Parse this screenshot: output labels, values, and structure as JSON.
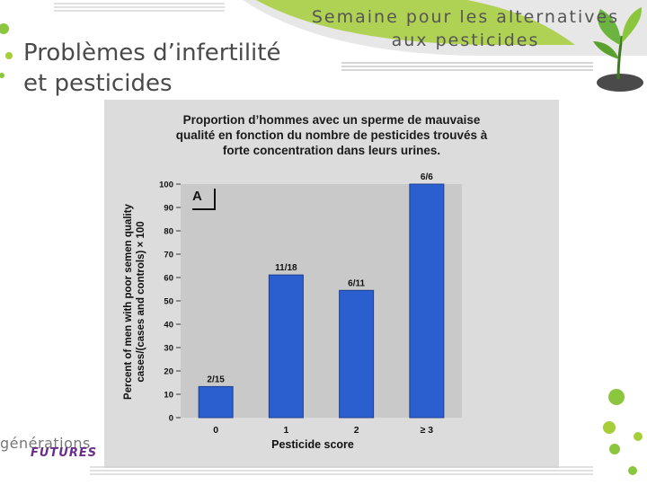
{
  "slide": {
    "title_line1": "Problèmes d’infertilité",
    "title_line2": "et pesticides",
    "banner_line1": "Semaine pour les alternatives",
    "banner_line2": "aux pesticides",
    "logo_line1": "générations",
    "logo_line2": "FUTURES"
  },
  "colors": {
    "bar": "#2b5fd0",
    "plot_bg": "#c9c9c9",
    "accent_green": "#8cc63f"
  },
  "chart_data": {
    "type": "bar",
    "title": "Proportion d’hommes avec un sperme de mauvaise qualité en fonction du nombre de pesticides trouvés à forte concentration dans leurs urines.",
    "title_lines": [
      "Proportion d’hommes avec un sperme de mauvaise",
      "qualité en fonction du nombre de pesticides trouvés à",
      "forte concentration dans leurs urines."
    ],
    "panel_label": "A",
    "categories": [
      "0",
      "1",
      "2",
      "≥ 3"
    ],
    "values": [
      13.3,
      61.1,
      54.5,
      100
    ],
    "data_labels": [
      "2/15",
      "11/18",
      "6/11",
      "6/6"
    ],
    "xlabel": "Pesticide score",
    "ylabel_line1": "Percent of men with poor semen quality",
    "ylabel_line2": "cases/(cases and controls) × 100",
    "ylim": [
      0,
      100
    ],
    "yticks": [
      0,
      10,
      20,
      30,
      40,
      50,
      60,
      70,
      80,
      90,
      100
    ],
    "grid": false
  }
}
